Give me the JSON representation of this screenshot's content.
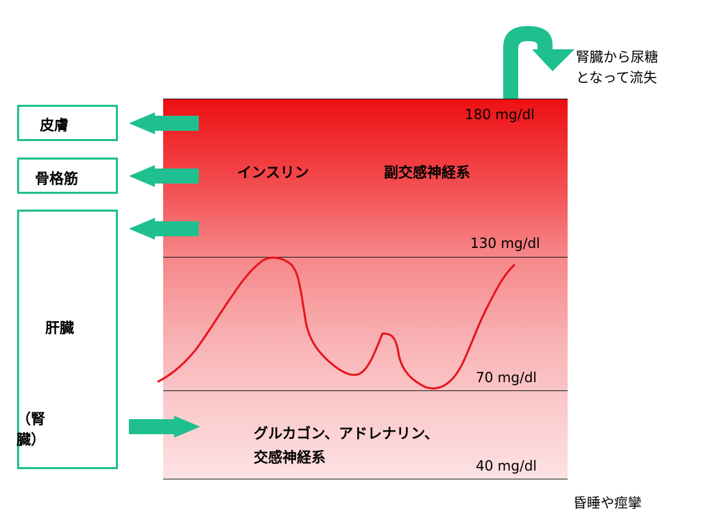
{
  "levels": {
    "l180": "180 mg/dl",
    "l130": "130 mg/dl",
    "l70": "70 mg/dl",
    "l40": "40 mg/dl"
  },
  "organs": {
    "skin": "皮膚",
    "muscle": "骨格筋",
    "liver": "肝臓",
    "kidney": "（腎\n臓）"
  },
  "upper_label": {
    "insulin": "インスリン",
    "parasympathetic": "副交感神経系"
  },
  "lower_label": {
    "line1": "グルカゴン、アドレナリン、",
    "line2": "交感神経系"
  },
  "urine_note": {
    "line1": "腎臓から尿糖",
    "line2": "となって流失"
  },
  "coma_note": "昏睡や痙攣",
  "colors": {
    "arrow": "#1fbf8f",
    "curve": "#e8141c",
    "panel_top": "#ee0f12",
    "panel_bottom": "#fde2e4"
  }
}
